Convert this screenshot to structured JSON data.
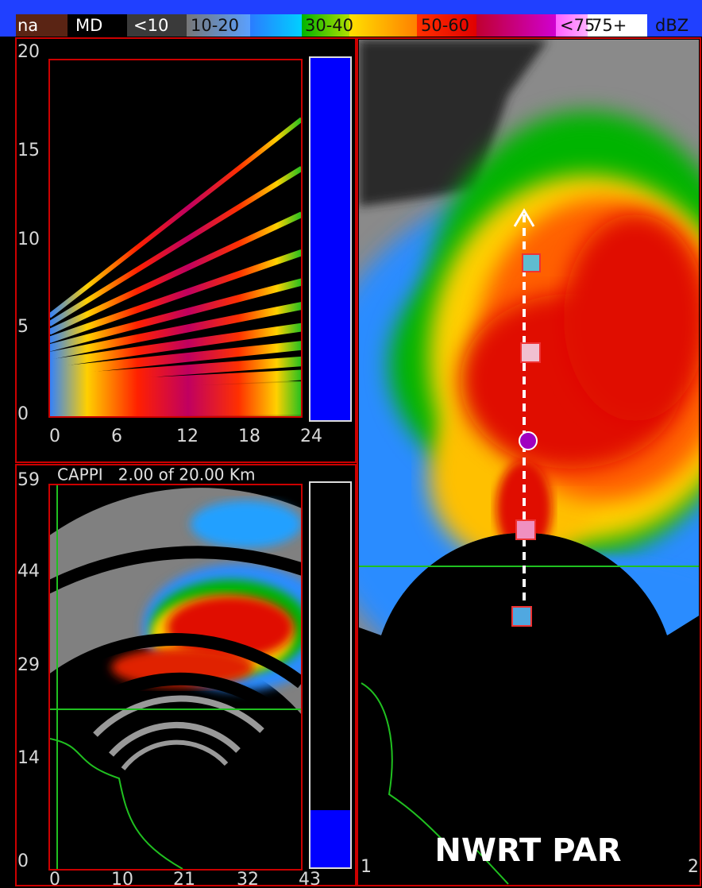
{
  "colorbar": {
    "labels": [
      "na",
      "MD",
      "<10",
      "10-20",
      "30-40",
      "50-60",
      "<75",
      "75+",
      "dBZ"
    ]
  },
  "rhi_panel": {
    "y_ticks": [
      "0",
      "5",
      "10",
      "15",
      "20"
    ],
    "x_ticks": [
      "0",
      "6",
      "12",
      "18",
      "24"
    ]
  },
  "cappi_panel": {
    "title": "CAPPI   2.00 of 20.00 Km",
    "y_ticks": [
      "0",
      "14",
      "29",
      "44",
      "59"
    ],
    "x_ticks": [
      "0",
      "10",
      "21",
      "32",
      "43"
    ]
  },
  "ppi_panel": {
    "label": "NWRT PAR",
    "corner_labels": [
      "1",
      "2"
    ]
  }
}
